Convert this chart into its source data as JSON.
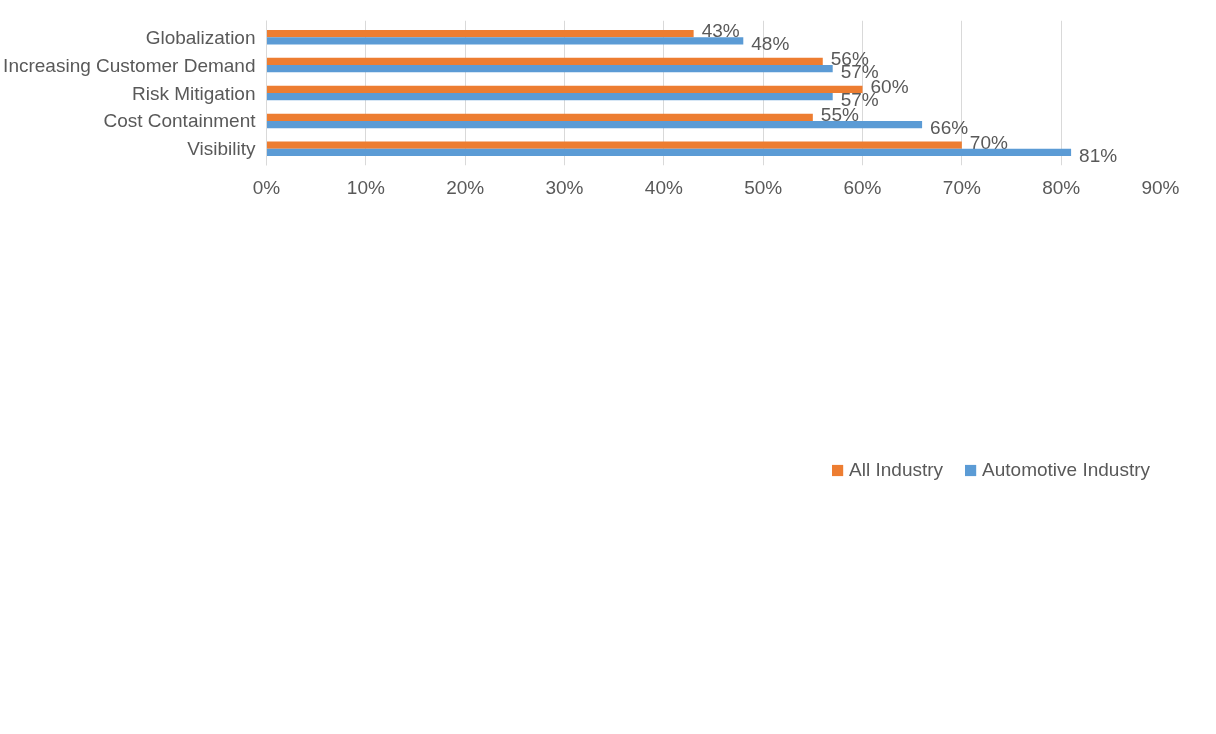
{
  "chart_data": {
    "type": "bar",
    "orientation": "horizontal",
    "categories": [
      "Globalization",
      "Increasing Customer Demand",
      "Risk Mitigation",
      "Cost Containment",
      "Visibility"
    ],
    "series": [
      {
        "name": "All Industry",
        "color": "#ed7d31",
        "values": [
          43,
          56,
          60,
          55,
          70
        ],
        "value_labels": [
          "43%",
          "56%",
          "60%",
          "55%",
          "70%"
        ]
      },
      {
        "name": "Automotive Industry",
        "color": "#5b9bd5",
        "values": [
          48,
          57,
          57,
          66,
          81
        ],
        "value_labels": [
          "48%",
          "57%",
          "57%",
          "66%",
          "81%"
        ]
      }
    ],
    "xlim": [
      0,
      90
    ],
    "xticks": [
      {
        "value": 0,
        "label": "0%"
      },
      {
        "value": 10,
        "label": "10%"
      },
      {
        "value": 20,
        "label": "20%"
      },
      {
        "value": 30,
        "label": "30%"
      },
      {
        "value": 40,
        "label": "40%"
      },
      {
        "value": 50,
        "label": "50%"
      },
      {
        "value": 60,
        "label": "60%"
      },
      {
        "value": 70,
        "label": "70%"
      },
      {
        "value": 80,
        "label": "80%"
      },
      {
        "value": 90,
        "label": "90%"
      }
    ],
    "grid": "x",
    "legend": "bottom"
  }
}
